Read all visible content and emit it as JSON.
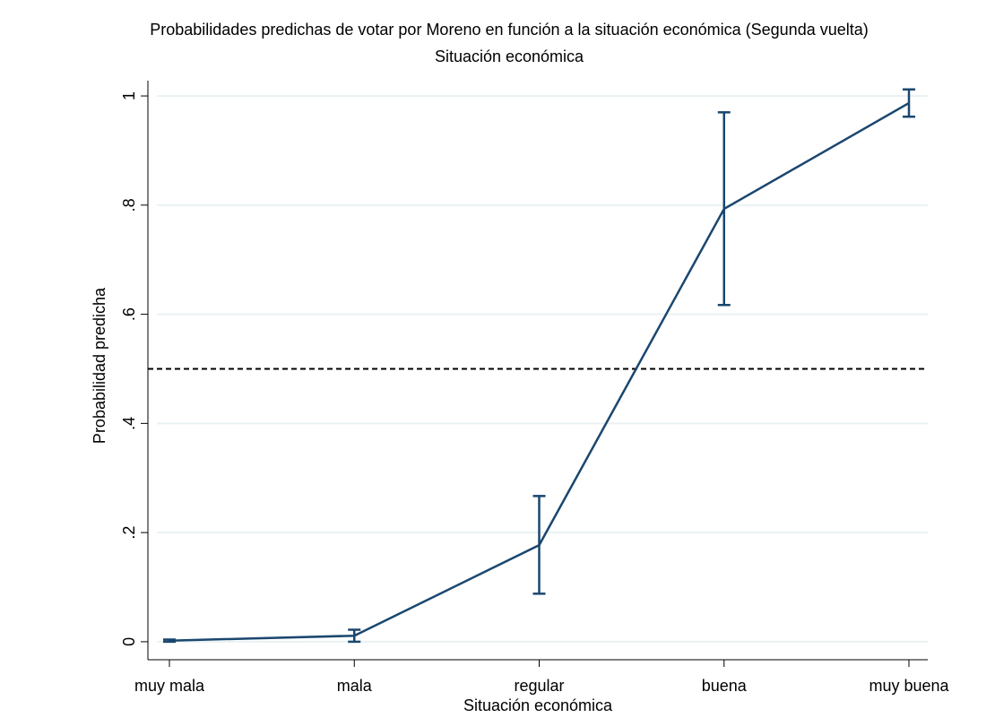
{
  "chart_data": {
    "type": "line",
    "title": "Probabilidades predichas de votar por Moreno en función a la situación económica (Segunda vuelta)",
    "subtitle": "Situación económica",
    "x_label": "Situación económica",
    "y_label": "Probabilidad predicha",
    "categories": [
      "muy mala",
      "mala",
      "regular",
      "buena",
      "muy buena"
    ],
    "series": [
      {
        "color": "#1a476f",
        "values": [
          0.002,
          0.011,
          0.177,
          0.793,
          0.987
        ],
        "lower": [
          0.0,
          0.0,
          0.088,
          0.617,
          0.962
        ],
        "upper": [
          0.004,
          0.022,
          0.267,
          0.97,
          1.012
        ]
      }
    ],
    "reference_line": 0.5,
    "ylim": [
      -0.033,
      1.028
    ],
    "yticks": [
      0,
      {
        "value": 0.2,
        "label": ".2"
      },
      {
        "value": 0.4,
        "label": ".4"
      },
      {
        "value": 0.6,
        "label": ".6"
      },
      {
        "value": 0.8,
        "label": ".8"
      },
      1
    ],
    "grid": true
  }
}
